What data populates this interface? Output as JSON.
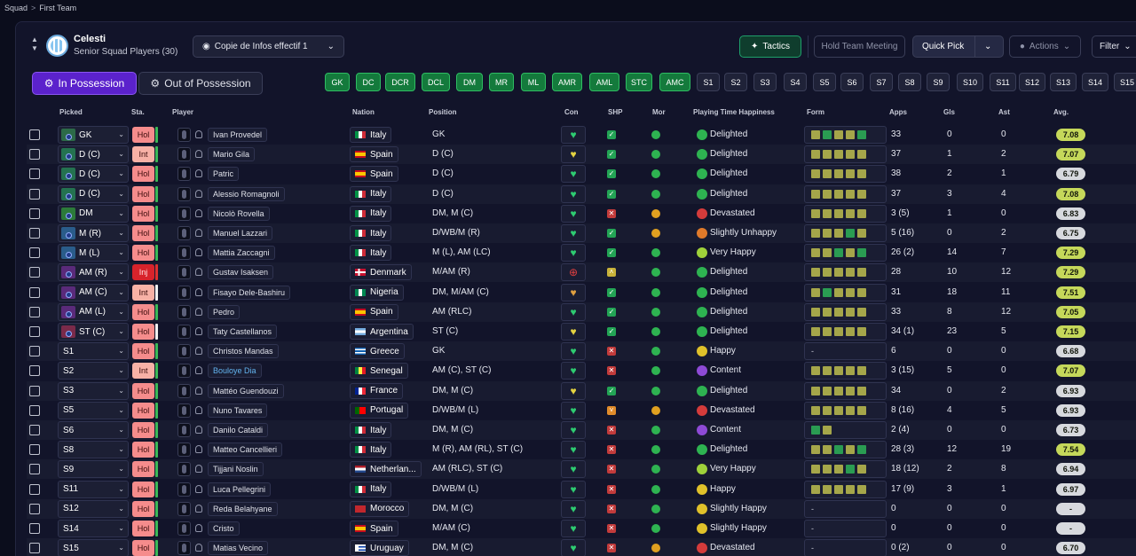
{
  "breadcrumb": {
    "root": "Squad",
    "separator": ">",
    "current": "First Team"
  },
  "club": {
    "name": "Celesti",
    "subtitle": "Senior Squad Players (30)"
  },
  "toolbar": {
    "view_label": "Copie de Infos effectif 1",
    "tactics_label": "Tactics",
    "meeting_label": "Hold Team Meeting",
    "quick_pick_label": "Quick Pick",
    "actions_label": "Actions",
    "filter_label": "Filter"
  },
  "possession_tabs": {
    "in": "In Possession",
    "out": "Out of Possession"
  },
  "position_pills": [
    {
      "label": "GK",
      "kind": "g"
    },
    {
      "label": "DC",
      "kind": "g"
    },
    {
      "label": "DCR",
      "kind": "g"
    },
    {
      "label": "DCL",
      "kind": "g"
    },
    {
      "label": "DM",
      "kind": "g"
    },
    {
      "label": "MR",
      "kind": "g"
    },
    {
      "label": "ML",
      "kind": "g"
    },
    {
      "label": "AMR",
      "kind": "g"
    },
    {
      "label": "AML",
      "kind": "g"
    },
    {
      "label": "STC",
      "kind": "g"
    },
    {
      "label": "AMC",
      "kind": "g"
    },
    {
      "label": "S1",
      "kind": "s"
    },
    {
      "label": "S2",
      "kind": "s"
    },
    {
      "label": "S3",
      "kind": "s"
    },
    {
      "label": "S4",
      "kind": "s"
    },
    {
      "label": "S5",
      "kind": "s"
    },
    {
      "label": "S6",
      "kind": "s"
    },
    {
      "label": "S7",
      "kind": "s"
    },
    {
      "label": "S8",
      "kind": "s"
    },
    {
      "label": "S9",
      "kind": "s"
    },
    {
      "label": "S10",
      "kind": "s"
    },
    {
      "label": "S11",
      "kind": "s"
    },
    {
      "label": "S12",
      "kind": "s"
    },
    {
      "label": "S13",
      "kind": "s"
    },
    {
      "label": "S14",
      "kind": "s"
    },
    {
      "label": "S15",
      "kind": "s"
    }
  ],
  "columns": {
    "picked": "Picked",
    "sta": "Sta.",
    "player": "Player",
    "nation": "Nation",
    "position": "Position",
    "con": "Con",
    "shp": "SHP",
    "mor": "Mor",
    "pth": "Playing Time Happiness",
    "form": "Form",
    "apps": "Apps",
    "gls": "Gls",
    "ast": "Ast",
    "avg": "Avg."
  },
  "colors": {
    "good_form": "#c5d85a",
    "form_green": "#2a9c52",
    "form_olive": "#a5a64a",
    "accent_green": "#1fa06b",
    "accent_purple": "#5b22cc"
  },
  "rows": [
    {
      "picked": "GK",
      "tile": "#2c6a48",
      "sta": "Hol",
      "bar": "#3bb857",
      "player": "Ivan Provedel",
      "nation": "Italy",
      "flag": "it",
      "position": "GK",
      "con": "heart-green",
      "shp": "tick",
      "mor": "green",
      "pth_icon": "green",
      "pth": "Delighted",
      "form": [
        "o",
        "g",
        "o",
        "o",
        "g"
      ],
      "apps": "33",
      "gls": "0",
      "ast": "0",
      "avg": "7.08",
      "avg_kind": "good"
    },
    {
      "picked": "D (C)",
      "tile": "#247250",
      "sta": "Int",
      "bar": "#3bb857",
      "player": "Mario Gila",
      "nation": "Spain",
      "flag": "es",
      "position": "D (C)",
      "con": "heart-yellow",
      "shp": "tick",
      "mor": "green",
      "pth_icon": "green",
      "pth": "Delighted",
      "form": [
        "o",
        "o",
        "o",
        "o",
        "o"
      ],
      "apps": "37",
      "gls": "1",
      "ast": "2",
      "avg": "7.07",
      "avg_kind": "good"
    },
    {
      "picked": "D (C)",
      "tile": "#247250",
      "sta": "Hol",
      "bar": "#3bb857",
      "player": "Patric",
      "nation": "Spain",
      "flag": "es",
      "position": "D (C)",
      "con": "heart-green",
      "shp": "tick",
      "mor": "green",
      "pth_icon": "green",
      "pth": "Delighted",
      "form": [
        "o",
        "o",
        "o",
        "o",
        "o"
      ],
      "apps": "38",
      "gls": "2",
      "ast": "1",
      "avg": "6.79",
      "avg_kind": "mid"
    },
    {
      "picked": "D (C)",
      "tile": "#247250",
      "sta": "Hol",
      "bar": "#3bb857",
      "player": "Alessio Romagnoli",
      "nation": "Italy",
      "flag": "it",
      "position": "D (C)",
      "con": "heart-green",
      "shp": "tick",
      "mor": "green",
      "pth_icon": "green",
      "pth": "Delighted",
      "form": [
        "o",
        "o",
        "o",
        "o",
        "o"
      ],
      "apps": "37",
      "gls": "3",
      "ast": "4",
      "avg": "7.08",
      "avg_kind": "good"
    },
    {
      "picked": "DM",
      "tile": "#2c7a3a",
      "sta": "Hol",
      "bar": "#3bb857",
      "player": "Nicolò Rovella",
      "nation": "Italy",
      "flag": "it",
      "position": "DM, M (C)",
      "con": "heart-green",
      "shp": "cross",
      "mor": "amber",
      "pth_icon": "red",
      "pth": "Devastated",
      "form": [
        "o",
        "o",
        "o",
        "o",
        "o"
      ],
      "apps": "3 (5)",
      "gls": "1",
      "ast": "0",
      "avg": "6.83",
      "avg_kind": "mid"
    },
    {
      "picked": "M (R)",
      "tile": "#2a5c8a",
      "sta": "Hol",
      "bar": "#3bb857",
      "player": "Manuel Lazzari",
      "nation": "Italy",
      "flag": "it",
      "position": "D/WB/M (R)",
      "con": "heart-green",
      "shp": "tick",
      "mor": "amber",
      "pth_icon": "orange",
      "pth": "Slightly Unhappy",
      "form": [
        "o",
        "o",
        "o",
        "g",
        "o"
      ],
      "apps": "5 (16)",
      "gls": "0",
      "ast": "2",
      "avg": "6.75",
      "avg_kind": "mid"
    },
    {
      "picked": "M (L)",
      "tile": "#2a5c8a",
      "sta": "Hol",
      "bar": "#3bb857",
      "player": "Mattia Zaccagni",
      "nation": "Italy",
      "flag": "it",
      "position": "M (L), AM (LC)",
      "con": "heart-green",
      "shp": "tick",
      "mor": "green",
      "pth_icon": "lime",
      "pth": "Very Happy",
      "form": [
        "o",
        "o",
        "g",
        "o",
        "g"
      ],
      "apps": "26 (2)",
      "gls": "14",
      "ast": "7",
      "avg": "7.29",
      "avg_kind": "good"
    },
    {
      "picked": "AM (R)",
      "tile": "#5a2a7a",
      "sta": "Inj",
      "bar": "#e03030",
      "player": "Gustav Isaksen",
      "nation": "Denmark",
      "flag": "dk",
      "position": "M/AM (R)",
      "con": "plus-red",
      "shp": "chev",
      "mor": "green",
      "pth_icon": "green",
      "pth": "Delighted",
      "form": [
        "o",
        "o",
        "o",
        "o",
        "o"
      ],
      "apps": "28",
      "gls": "10",
      "ast": "12",
      "avg": "7.29",
      "avg_kind": "good"
    },
    {
      "picked": "AM (C)",
      "tile": "#5a2a7a",
      "sta": "Int",
      "bar": "#f0f0f0",
      "player": "Fisayo Dele-Bashiru",
      "nation": "Nigeria",
      "flag": "ng",
      "position": "DM, M/AM (C)",
      "con": "heart-orange",
      "shp": "tick",
      "mor": "green",
      "pth_icon": "green",
      "pth": "Delighted",
      "form": [
        "o",
        "g",
        "o",
        "o",
        "o"
      ],
      "apps": "31",
      "gls": "18",
      "ast": "11",
      "avg": "7.51",
      "avg_kind": "good"
    },
    {
      "picked": "AM (L)",
      "tile": "#5a2a7a",
      "sta": "Hol",
      "bar": "#3bb857",
      "player": "Pedro",
      "nation": "Spain",
      "flag": "es",
      "position": "AM (RLC)",
      "con": "heart-green",
      "shp": "tick",
      "mor": "green",
      "pth_icon": "green",
      "pth": "Delighted",
      "form": [
        "o",
        "o",
        "o",
        "o",
        "o"
      ],
      "apps": "33",
      "gls": "8",
      "ast": "12",
      "avg": "7.05",
      "avg_kind": "good"
    },
    {
      "picked": "ST (C)",
      "tile": "#7a2a4a",
      "sta": "Hol",
      "bar": "#f0f0f0",
      "player": "Taty Castellanos",
      "nation": "Argentina",
      "flag": "ar",
      "position": "ST (C)",
      "con": "heart-yellow",
      "shp": "tick",
      "mor": "green",
      "pth_icon": "green",
      "pth": "Delighted",
      "form": [
        "o",
        "o",
        "o",
        "o",
        "o"
      ],
      "apps": "34 (1)",
      "gls": "23",
      "ast": "5",
      "avg": "7.15",
      "avg_kind": "good"
    },
    {
      "picked": "S1",
      "tile": "",
      "sta": "Hol",
      "bar": "#3bb857",
      "player": "Christos Mandas",
      "nation": "Greece",
      "flag": "gr",
      "position": "GK",
      "con": "heart-green",
      "shp": "cross",
      "mor": "green",
      "pth_icon": "yellow",
      "pth": "Happy",
      "form": [],
      "form_text": "-",
      "apps": "6",
      "gls": "0",
      "ast": "0",
      "avg": "6.68",
      "avg_kind": "mid"
    },
    {
      "picked": "S2",
      "tile": "",
      "sta": "Int",
      "bar": "#3bb857",
      "player": "Bouloye Dia",
      "player_link": true,
      "nation": "Senegal",
      "flag": "sn",
      "position": "AM (C), ST (C)",
      "con": "heart-green",
      "shp": "cross",
      "mor": "green",
      "pth_icon": "purple",
      "pth": "Content",
      "form": [
        "o",
        "o",
        "o",
        "o",
        "o"
      ],
      "apps": "3 (15)",
      "gls": "5",
      "ast": "0",
      "avg": "7.07",
      "avg_kind": "good"
    },
    {
      "picked": "S3",
      "tile": "",
      "sta": "Hol",
      "bar": "#3bb857",
      "player": "Mattéo Guendouzi",
      "nation": "France",
      "flag": "fr",
      "position": "DM, M (C)",
      "con": "heart-yellow",
      "shp": "tick",
      "mor": "green",
      "pth_icon": "green",
      "pth": "Delighted",
      "form": [
        "o",
        "o",
        "o",
        "o",
        "o"
      ],
      "apps": "34",
      "gls": "0",
      "ast": "2",
      "avg": "6.93",
      "avg_kind": "mid"
    },
    {
      "picked": "S5",
      "tile": "",
      "sta": "Hol",
      "bar": "#3bb857",
      "player": "Nuno Tavares",
      "nation": "Portugal",
      "flag": "pt",
      "position": "D/WB/M (L)",
      "con": "heart-green",
      "shp": "chev-orange",
      "mor": "amber",
      "pth_icon": "red",
      "pth": "Devastated",
      "form": [
        "o",
        "o",
        "o",
        "o",
        "o"
      ],
      "apps": "8 (16)",
      "gls": "4",
      "ast": "5",
      "avg": "6.93",
      "avg_kind": "mid"
    },
    {
      "picked": "S6",
      "tile": "",
      "sta": "Hol",
      "bar": "#3bb857",
      "player": "Danilo Cataldi",
      "nation": "Italy",
      "flag": "it",
      "position": "DM, M (C)",
      "con": "heart-green",
      "shp": "cross",
      "mor": "green",
      "pth_icon": "purple",
      "pth": "Content",
      "form": [
        "g",
        "o"
      ],
      "apps": "2 (4)",
      "gls": "0",
      "ast": "0",
      "avg": "6.73",
      "avg_kind": "mid"
    },
    {
      "picked": "S8",
      "tile": "",
      "sta": "Hol",
      "bar": "#3bb857",
      "player": "Matteo Cancellieri",
      "nation": "Italy",
      "flag": "it",
      "position": "M (R), AM (RL), ST (C)",
      "con": "heart-green",
      "shp": "cross",
      "mor": "green",
      "pth_icon": "green",
      "pth": "Delighted",
      "form": [
        "o",
        "o",
        "g",
        "o",
        "g"
      ],
      "apps": "28 (3)",
      "gls": "12",
      "ast": "19",
      "avg": "7.54",
      "avg_kind": "good"
    },
    {
      "picked": "S9",
      "tile": "",
      "sta": "Hol",
      "bar": "#3bb857",
      "player": "Tijjani Noslin",
      "nation": "Netherlan...",
      "flag": "nl",
      "position": "AM (RLC), ST (C)",
      "con": "heart-green",
      "shp": "cross",
      "mor": "green",
      "pth_icon": "lime",
      "pth": "Very Happy",
      "form": [
        "o",
        "o",
        "o",
        "g",
        "o"
      ],
      "apps": "18 (12)",
      "gls": "2",
      "ast": "8",
      "avg": "6.94",
      "avg_kind": "mid"
    },
    {
      "picked": "S11",
      "tile": "",
      "sta": "Hol",
      "bar": "#3bb857",
      "player": "Luca Pellegrini",
      "nation": "Italy",
      "flag": "it",
      "position": "D/WB/M (L)",
      "con": "heart-green",
      "shp": "cross",
      "mor": "green",
      "pth_icon": "yellow",
      "pth": "Happy",
      "form": [
        "o",
        "o",
        "o",
        "o",
        "o"
      ],
      "apps": "17 (9)",
      "gls": "3",
      "ast": "1",
      "avg": "6.97",
      "avg_kind": "mid"
    },
    {
      "picked": "S12",
      "tile": "",
      "sta": "Hol",
      "bar": "#3bb857",
      "player": "Reda Belahyane",
      "nation": "Morocco",
      "flag": "ma",
      "position": "DM, M (C)",
      "con": "heart-green",
      "shp": "cross",
      "mor": "green",
      "pth_icon": "yellow",
      "pth": "Slightly Happy",
      "form": [],
      "form_text": "-",
      "apps": "0",
      "gls": "0",
      "ast": "0",
      "avg": "-",
      "avg_kind": "mid"
    },
    {
      "picked": "S14",
      "tile": "",
      "sta": "Hol",
      "bar": "#3bb857",
      "player": "Cristo",
      "nation": "Spain",
      "flag": "es",
      "position": "M/AM (C)",
      "con": "heart-green",
      "shp": "cross",
      "mor": "green",
      "pth_icon": "yellow",
      "pth": "Slightly Happy",
      "form": [],
      "form_text": "-",
      "apps": "0",
      "gls": "0",
      "ast": "0",
      "avg": "-",
      "avg_kind": "mid"
    },
    {
      "picked": "S15",
      "tile": "",
      "sta": "Hol",
      "bar": "#3bb857",
      "player": "Matias Vecino",
      "nation": "Uruguay",
      "flag": "uy",
      "position": "DM, M (C)",
      "con": "heart-green",
      "shp": "cross",
      "mor": "amber",
      "pth_icon": "red",
      "pth": "Devastated",
      "form": [],
      "form_text": "-",
      "apps": "0 (2)",
      "gls": "0",
      "ast": "0",
      "avg": "6.70",
      "avg_kind": "mid"
    }
  ]
}
